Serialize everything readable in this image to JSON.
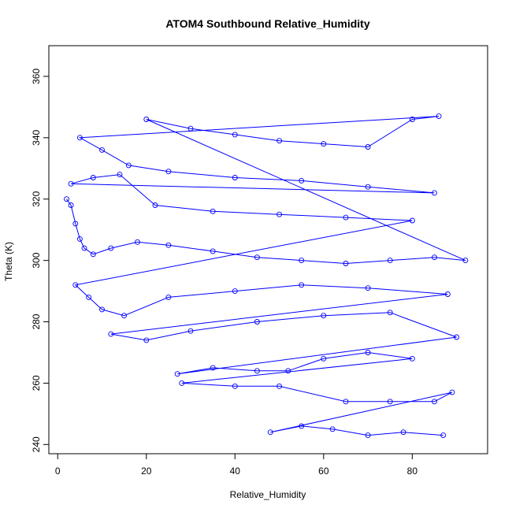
{
  "chart_data": {
    "type": "scatter",
    "title": "ATOM4 Southbound Relative_Humidity",
    "xlabel": "Relative_Humidity",
    "ylabel": "Theta (K)",
    "xlim": [
      -2,
      97
    ],
    "ylim": [
      237,
      370
    ],
    "xticks": [
      0,
      20,
      40,
      60,
      80
    ],
    "yticks": [
      240,
      260,
      280,
      300,
      320,
      340,
      360
    ],
    "grid": false,
    "series_color": "#0000ff",
    "marker": "open-circle",
    "connected": true,
    "series": [
      {
        "values_sample": [
          [
            2,
            320
          ],
          [
            3,
            318
          ],
          [
            4,
            312
          ],
          [
            5,
            307
          ],
          [
            6,
            304
          ],
          [
            8,
            302
          ],
          [
            12,
            304
          ],
          [
            18,
            306
          ],
          [
            25,
            305
          ],
          [
            35,
            303
          ],
          [
            45,
            301
          ],
          [
            55,
            300
          ],
          [
            65,
            299
          ],
          [
            75,
            300
          ],
          [
            85,
            301
          ],
          [
            92,
            300
          ],
          [
            20,
            346
          ],
          [
            30,
            343
          ],
          [
            40,
            341
          ],
          [
            50,
            339
          ],
          [
            60,
            338
          ],
          [
            70,
            337
          ],
          [
            80,
            346
          ],
          [
            86,
            347
          ],
          [
            5,
            340
          ],
          [
            10,
            336
          ],
          [
            16,
            331
          ],
          [
            25,
            329
          ],
          [
            40,
            327
          ],
          [
            55,
            326
          ],
          [
            70,
            324
          ],
          [
            85,
            322
          ],
          [
            3,
            325
          ],
          [
            8,
            327
          ],
          [
            14,
            328
          ],
          [
            22,
            318
          ],
          [
            35,
            316
          ],
          [
            50,
            315
          ],
          [
            65,
            314
          ],
          [
            80,
            313
          ],
          [
            4,
            292
          ],
          [
            7,
            288
          ],
          [
            10,
            284
          ],
          [
            15,
            282
          ],
          [
            25,
            288
          ],
          [
            40,
            290
          ],
          [
            55,
            292
          ],
          [
            70,
            291
          ],
          [
            88,
            289
          ],
          [
            12,
            276
          ],
          [
            20,
            274
          ],
          [
            30,
            277
          ],
          [
            45,
            280
          ],
          [
            60,
            282
          ],
          [
            75,
            283
          ],
          [
            90,
            275
          ],
          [
            27,
            263
          ],
          [
            35,
            265
          ],
          [
            45,
            264
          ],
          [
            52,
            264
          ],
          [
            60,
            268
          ],
          [
            70,
            270
          ],
          [
            80,
            268
          ],
          [
            28,
            260
          ],
          [
            40,
            259
          ],
          [
            50,
            259
          ],
          [
            65,
            254
          ],
          [
            75,
            254
          ],
          [
            85,
            254
          ],
          [
            89,
            257
          ],
          [
            48,
            244
          ],
          [
            55,
            246
          ],
          [
            62,
            245
          ],
          [
            70,
            243
          ],
          [
            78,
            244
          ],
          [
            87,
            243
          ]
        ]
      }
    ]
  }
}
